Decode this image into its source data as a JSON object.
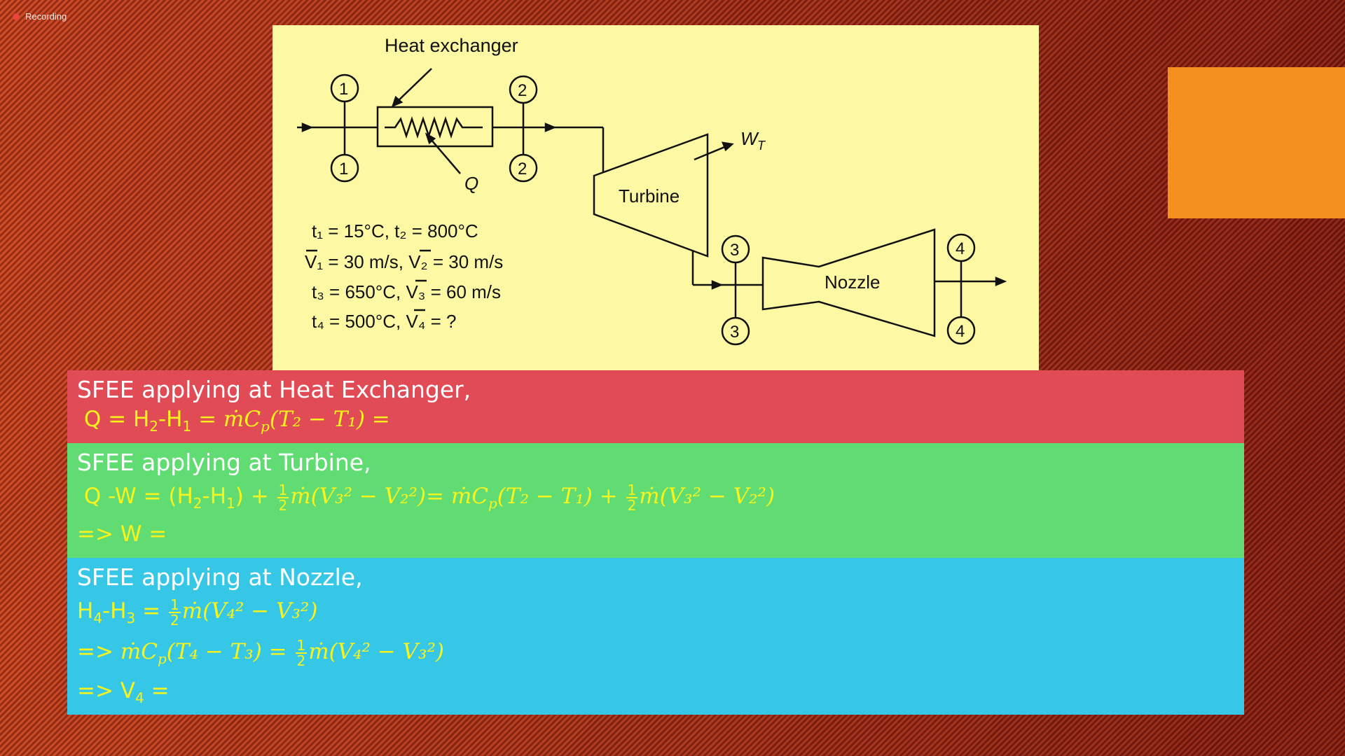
{
  "recording": {
    "label": "Recording"
  },
  "diagram": {
    "heat_exchanger_label": "Heat exchanger",
    "q_label": "Q",
    "wt_label": "W",
    "wt_sub": "T",
    "turbine_label": "Turbine",
    "nozzle_label": "Nozzle",
    "states": [
      "1",
      "2",
      "3",
      "4"
    ],
    "given": {
      "line1": "t₁ = 15°C, t₂ = 800°C",
      "line2": "V₁ = 30 m/s, V₂ = 30 m/s",
      "line3": "t₃ = 650°C, V₃ = 60 m/s",
      "line4": "t₄ = 500°C, V₄ = ?"
    }
  },
  "sections": {
    "heat_exchanger": {
      "heading": "SFEE applying at Heat Exchanger,",
      "eq1_prefix": "Q = H",
      "eq1_sub2": "2",
      "eq1_mid": "-H",
      "eq1_sub1": "1",
      "eq1_rhs": " = ṁC",
      "eq1_p": "p",
      "eq1_paren": "(T₂ − T₁) ="
    },
    "turbine": {
      "heading": "SFEE applying at Turbine,",
      "eq1_a": "Q -W = (H",
      "eq1_b": "-H",
      "eq1_c": ") + ",
      "frac_num": "1",
      "frac_den": "2",
      "eq1_d": "ṁ(V₃² − V₂²)= ṁC",
      "eq1_e": "(T₂ − T₁) + ",
      "eq1_f": "ṁ(V₃² − V₂²)",
      "eq2": "=> W ="
    },
    "nozzle": {
      "heading": "SFEE applying at Nozzle,",
      "eq1_a": "H",
      "eq1_b": "-H",
      "eq1_c": " = ",
      "eq1_d": "ṁ(V₄² − V₃²)",
      "eq2_a": "=> ",
      "eq2_b": "ṁC",
      "eq2_c": "(T₄ − T₃) = ",
      "eq2_d": "ṁ(V₄² − V₃²)",
      "eq3_a": "=> V",
      "eq3_sub": "4",
      "eq3_b": " ="
    }
  }
}
